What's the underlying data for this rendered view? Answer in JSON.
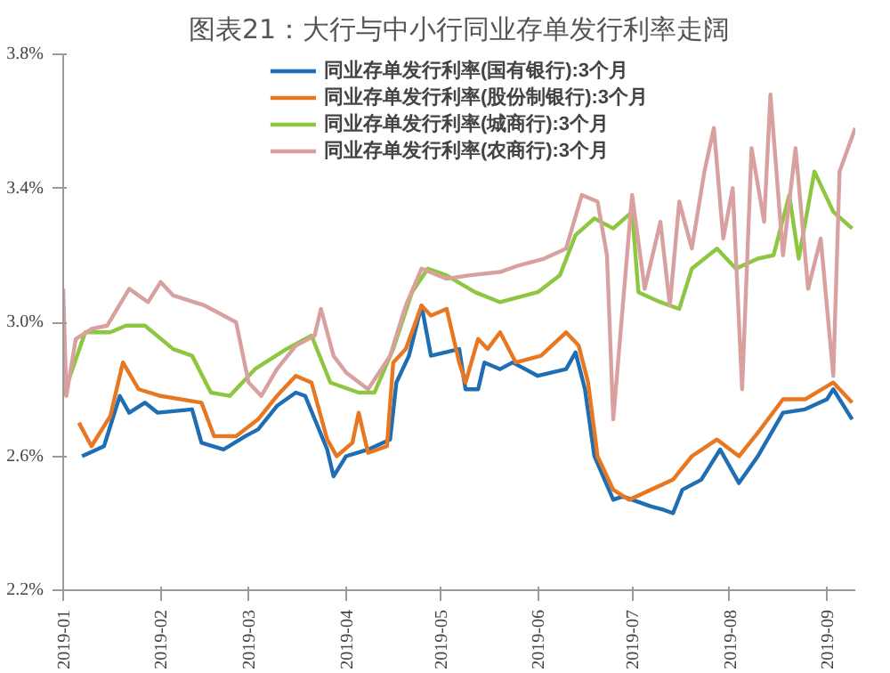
{
  "chart_data": {
    "type": "line",
    "title": "图表21：大行与中小行同业存单发行利率走阔",
    "xlim": [
      "2019-01-01",
      "2019-09-10"
    ],
    "xticks": [
      "2019-01",
      "2019-02",
      "2019-03",
      "2019-04",
      "2019-05",
      "2019-06",
      "2019-07",
      "2019-08",
      "2019-09"
    ],
    "ylim": [
      2.2,
      3.8
    ],
    "yticks": [
      {
        "value": 2.2,
        "label": "2.2%"
      },
      {
        "value": 2.6,
        "label": "2.6%"
      },
      {
        "value": 3.0,
        "label": "3.0%"
      },
      {
        "value": 3.4,
        "label": "3.4%"
      },
      {
        "value": 3.8,
        "label": "3.8%"
      }
    ],
    "grid": false,
    "legend": "top",
    "series": [
      {
        "name": "同业存单发行利率(国有银行):3个月",
        "color": "#1f6eb4",
        "x": [
          "2019-01-07",
          "2019-01-14",
          "2019-01-19",
          "2019-01-22",
          "2019-01-27",
          "2019-01-31",
          "2019-02-11",
          "2019-02-14",
          "2019-02-21",
          "2019-02-28",
          "2019-03-04",
          "2019-03-10",
          "2019-03-16",
          "2019-03-19",
          "2019-03-26",
          "2019-03-28",
          "2019-04-01",
          "2019-04-08",
          "2019-04-15",
          "2019-04-17",
          "2019-04-21",
          "2019-04-25",
          "2019-04-28",
          "2019-05-07",
          "2019-05-09",
          "2019-05-13",
          "2019-05-15",
          "2019-05-20",
          "2019-05-24",
          "2019-06-01",
          "2019-06-10",
          "2019-06-13",
          "2019-06-16",
          "2019-06-19",
          "2019-06-25",
          "2019-06-28",
          "2019-07-07",
          "2019-07-11",
          "2019-07-14",
          "2019-07-17",
          "2019-07-23",
          "2019-07-29",
          "2019-08-04",
          "2019-08-10",
          "2019-08-18",
          "2019-08-25",
          "2019-09-01",
          "2019-09-03",
          "2019-09-09"
        ],
        "values": [
          2.6,
          2.63,
          2.78,
          2.73,
          2.76,
          2.73,
          2.74,
          2.64,
          2.62,
          2.66,
          2.68,
          2.75,
          2.79,
          2.78,
          2.62,
          2.54,
          2.6,
          2.62,
          2.65,
          2.82,
          2.9,
          3.05,
          2.9,
          2.92,
          2.8,
          2.8,
          2.88,
          2.86,
          2.88,
          2.84,
          2.86,
          2.91,
          2.8,
          2.6,
          2.47,
          2.48,
          2.45,
          2.44,
          2.43,
          2.5,
          2.53,
          2.62,
          2.52,
          2.6,
          2.73,
          2.74,
          2.77,
          2.8,
          2.71
        ]
      },
      {
        "name": "同业存单发行利率(股份制银行):3个月",
        "color": "#e87722",
        "x": [
          "2019-01-06",
          "2019-01-10",
          "2019-01-16",
          "2019-01-20",
          "2019-01-25",
          "2019-02-01",
          "2019-02-14",
          "2019-02-18",
          "2019-02-25",
          "2019-03-04",
          "2019-03-10",
          "2019-03-16",
          "2019-03-21",
          "2019-03-26",
          "2019-03-29",
          "2019-04-03",
          "2019-04-05",
          "2019-04-08",
          "2019-04-14",
          "2019-04-16",
          "2019-04-20",
          "2019-04-25",
          "2019-04-28",
          "2019-05-03",
          "2019-05-07",
          "2019-05-09",
          "2019-05-13",
          "2019-05-16",
          "2019-05-20",
          "2019-05-25",
          "2019-06-02",
          "2019-06-10",
          "2019-06-14",
          "2019-06-17",
          "2019-06-20",
          "2019-06-25",
          "2019-06-30",
          "2019-07-07",
          "2019-07-14",
          "2019-07-20",
          "2019-07-28",
          "2019-08-04",
          "2019-08-10",
          "2019-08-18",
          "2019-08-25",
          "2019-09-03",
          "2019-09-09"
        ],
        "values": [
          2.7,
          2.63,
          2.72,
          2.88,
          2.8,
          2.78,
          2.76,
          2.66,
          2.66,
          2.71,
          2.78,
          2.84,
          2.82,
          2.65,
          2.6,
          2.64,
          2.73,
          2.61,
          2.63,
          2.88,
          2.92,
          3.05,
          3.02,
          3.04,
          2.88,
          2.82,
          2.95,
          2.92,
          2.97,
          2.88,
          2.9,
          2.97,
          2.93,
          2.82,
          2.6,
          2.5,
          2.47,
          2.5,
          2.53,
          2.6,
          2.65,
          2.6,
          2.67,
          2.77,
          2.77,
          2.82,
          2.76
        ]
      },
      {
        "name": "同业存单发行利率(城商行):3个月",
        "color": "#8dc63f",
        "x": [
          "2019-01-01",
          "2019-01-08",
          "2019-01-16",
          "2019-01-21",
          "2019-01-27",
          "2019-02-05",
          "2019-02-11",
          "2019-02-17",
          "2019-02-23",
          "2019-03-03",
          "2019-03-13",
          "2019-03-21",
          "2019-03-27",
          "2019-04-05",
          "2019-04-10",
          "2019-04-16",
          "2019-04-22",
          "2019-04-27",
          "2019-05-03",
          "2019-05-12",
          "2019-05-20",
          "2019-06-01",
          "2019-06-08",
          "2019-06-13",
          "2019-06-19",
          "2019-06-25",
          "2019-07-01",
          "2019-07-03",
          "2019-07-10",
          "2019-07-16",
          "2019-07-20",
          "2019-07-28",
          "2019-08-03",
          "2019-08-10",
          "2019-08-15",
          "2019-08-20",
          "2019-08-23",
          "2019-08-28",
          "2019-09-03",
          "2019-09-09"
        ],
        "values": [
          2.78,
          2.97,
          2.97,
          2.99,
          2.99,
          2.92,
          2.9,
          2.79,
          2.78,
          2.86,
          2.92,
          2.96,
          2.82,
          2.79,
          2.79,
          2.92,
          3.09,
          3.16,
          3.14,
          3.09,
          3.06,
          3.09,
          3.14,
          3.26,
          3.31,
          3.28,
          3.33,
          3.09,
          3.06,
          3.04,
          3.16,
          3.22,
          3.16,
          3.19,
          3.2,
          3.38,
          3.19,
          3.45,
          3.33,
          3.28
        ]
      },
      {
        "name": "同业存单发行利率(农商行):3个月",
        "color": "#d9a0a0",
        "x": [
          "2019-01-01",
          "2019-01-02",
          "2019-01-05",
          "2019-01-10",
          "2019-01-15",
          "2019-01-22",
          "2019-01-28",
          "2019-02-01",
          "2019-02-05",
          "2019-02-15",
          "2019-02-25",
          "2019-03-01",
          "2019-03-05",
          "2019-03-10",
          "2019-03-16",
          "2019-03-22",
          "2019-03-24",
          "2019-03-28",
          "2019-04-01",
          "2019-04-08",
          "2019-04-15",
          "2019-04-20",
          "2019-04-25",
          "2019-05-03",
          "2019-05-10",
          "2019-05-20",
          "2019-05-26",
          "2019-06-03",
          "2019-06-10",
          "2019-06-15",
          "2019-06-20",
          "2019-06-23",
          "2019-06-25",
          "2019-07-01",
          "2019-07-05",
          "2019-07-10",
          "2019-07-13",
          "2019-07-16",
          "2019-07-20",
          "2019-07-24",
          "2019-07-27",
          "2019-07-30",
          "2019-08-02",
          "2019-08-05",
          "2019-08-08",
          "2019-08-12",
          "2019-08-14",
          "2019-08-18",
          "2019-08-22",
          "2019-08-26",
          "2019-08-30",
          "2019-09-03",
          "2019-09-05",
          "2019-09-10"
        ],
        "values": [
          3.1,
          2.78,
          2.95,
          2.98,
          2.99,
          3.1,
          3.06,
          3.12,
          3.08,
          3.05,
          3.0,
          2.82,
          2.78,
          2.86,
          2.93,
          2.96,
          3.04,
          2.9,
          2.85,
          2.8,
          2.9,
          3.05,
          3.16,
          3.13,
          3.14,
          3.15,
          3.17,
          3.19,
          3.22,
          3.38,
          3.36,
          3.2,
          2.71,
          3.38,
          3.1,
          3.3,
          3.05,
          3.36,
          3.22,
          3.45,
          3.58,
          3.25,
          3.4,
          2.8,
          3.52,
          3.3,
          3.68,
          3.2,
          3.52,
          3.1,
          3.25,
          2.84,
          3.45,
          3.58
        ]
      }
    ]
  }
}
